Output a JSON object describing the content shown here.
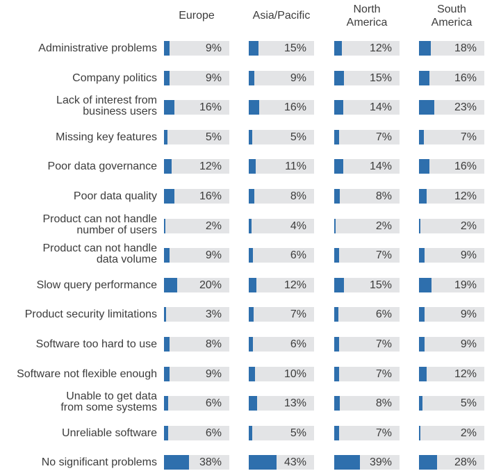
{
  "chart_data": {
    "type": "bar",
    "orientation": "horizontal",
    "columns": [
      "Europe",
      "Asia/Pacific",
      "North\nAmerica",
      "South\nAmerica"
    ],
    "categories": [
      "Administrative problems",
      "Company politics",
      "Lack of interest from\nbusiness users",
      "Missing key features",
      "Poor data governance",
      "Poor data quality",
      "Product can not handle\nnumber of users",
      "Product can not handle\ndata volume",
      "Slow query performance",
      "Product security limitations",
      "Software too hard to use",
      "Software not flexible enough",
      "Unable to get data\nfrom some systems",
      "Unreliable software",
      "No significant problems"
    ],
    "series": [
      {
        "name": "Europe",
        "values": [
          9,
          9,
          16,
          5,
          12,
          16,
          2,
          9,
          20,
          3,
          8,
          9,
          6,
          6,
          38
        ]
      },
      {
        "name": "Asia/Pacific",
        "values": [
          15,
          9,
          16,
          5,
          11,
          8,
          4,
          6,
          12,
          7,
          6,
          10,
          13,
          5,
          43
        ]
      },
      {
        "name": "North America",
        "values": [
          12,
          15,
          14,
          7,
          14,
          8,
          2,
          7,
          15,
          6,
          7,
          7,
          8,
          7,
          39
        ]
      },
      {
        "name": "South America",
        "values": [
          18,
          16,
          23,
          7,
          16,
          12,
          2,
          9,
          19,
          9,
          9,
          12,
          5,
          2,
          28
        ]
      }
    ],
    "value_suffix": "%",
    "xlim": [
      0,
      100
    ],
    "colors": {
      "bar": "#2e6fad",
      "track": "#e3e4e6"
    }
  }
}
